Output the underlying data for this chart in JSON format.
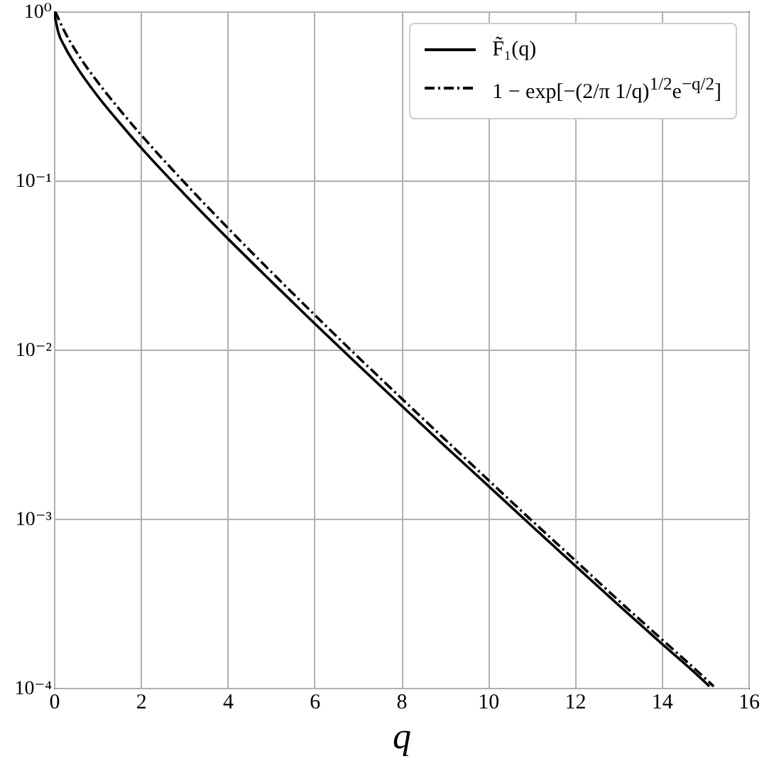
{
  "chart_data": {
    "type": "line",
    "xlabel": "q",
    "log": "y",
    "grid": true,
    "legend": "top right",
    "marker": "none",
    "xlim": [
      0,
      16
    ],
    "xticks": [
      0,
      2,
      4,
      6,
      8,
      10,
      12,
      14,
      16
    ],
    "ylim": [
      0.0001,
      1
    ],
    "yticks": [
      {
        "value": 0.0001,
        "label": "10⁻⁴"
      },
      {
        "value": 0.001,
        "label": "10⁻³"
      },
      {
        "value": 0.01,
        "label": "10⁻²"
      },
      {
        "value": 0.1,
        "label": "10⁻¹"
      },
      {
        "value": 1,
        "label": "10⁰"
      }
    ],
    "series": [
      {
        "name": "F̃₁(q)",
        "color": "#000000",
        "line_style": "solid",
        "x": [
          0,
          0.1,
          0.25,
          0.5,
          1,
          1.5,
          2,
          3,
          4,
          5,
          6,
          7,
          8,
          9,
          10,
          11,
          12,
          13,
          14,
          15,
          15.1
        ],
        "values": [
          1,
          0.752,
          0.617,
          0.48,
          0.317,
          0.221,
          0.157,
          0.0833,
          0.0455,
          0.0254,
          0.0143,
          0.00815,
          0.00468,
          0.0027,
          0.00157,
          0.00091,
          0.00053,
          0.00031,
          0.000183,
          0.000108,
          0.000102
        ]
      },
      {
        "name": "1 − exp[−(2/π 1/q)$^{1/2}$e$^{−q/2}$]",
        "color": "#000000",
        "line_style": "dashdot",
        "x": [
          0.01,
          0.05,
          0.1,
          0.25,
          0.5,
          1,
          1.5,
          2,
          3,
          4,
          5,
          6,
          7,
          8,
          9,
          10,
          11,
          12,
          13,
          14,
          15,
          15.2
        ],
        "values": [
          1,
          0.969,
          0.909,
          0.755,
          0.585,
          0.384,
          0.265,
          0.187,
          0.0977,
          0.0526,
          0.0289,
          0.0161,
          0.00907,
          0.00517,
          0.00296,
          0.0017,
          0.00098,
          0.00057,
          0.00033,
          0.000194,
          0.000114,
          0.000102
        ]
      }
    ]
  }
}
